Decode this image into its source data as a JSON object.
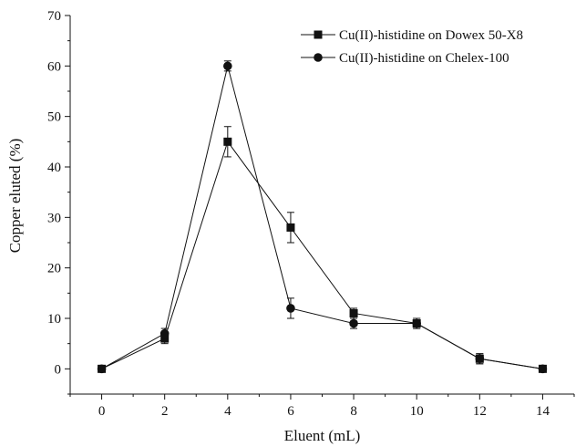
{
  "chart_data": {
    "type": "line",
    "title": "",
    "xlabel": "Eluent (mL)",
    "ylabel": "Copper eluted (%)",
    "xlim": [
      -1,
      15
    ],
    "ylim": [
      -5,
      70
    ],
    "x_ticks": [
      0,
      2,
      4,
      6,
      8,
      10,
      12,
      14
    ],
    "y_ticks": [
      0,
      10,
      20,
      30,
      40,
      50,
      60,
      70
    ],
    "grid": false,
    "legend_position": "top-right",
    "series": [
      {
        "name": "Cu(II)-histidine on Dowex 50-X8",
        "marker": "square",
        "x": [
          0,
          2,
          4,
          6,
          8,
          10,
          12,
          14
        ],
        "values": [
          0,
          6,
          45,
          28,
          11,
          9,
          2,
          0
        ],
        "errors": [
          0.3,
          1,
          3,
          3,
          1,
          1,
          1,
          0.3
        ]
      },
      {
        "name": "Cu(II)-histidine on Chelex-100",
        "marker": "circle",
        "x": [
          0,
          2,
          4,
          6,
          8,
          10,
          12,
          14
        ],
        "values": [
          0,
          7,
          60,
          12,
          9,
          9,
          2,
          0
        ],
        "errors": [
          0.3,
          1,
          1,
          2,
          1,
          1,
          1,
          0.3
        ]
      }
    ]
  }
}
